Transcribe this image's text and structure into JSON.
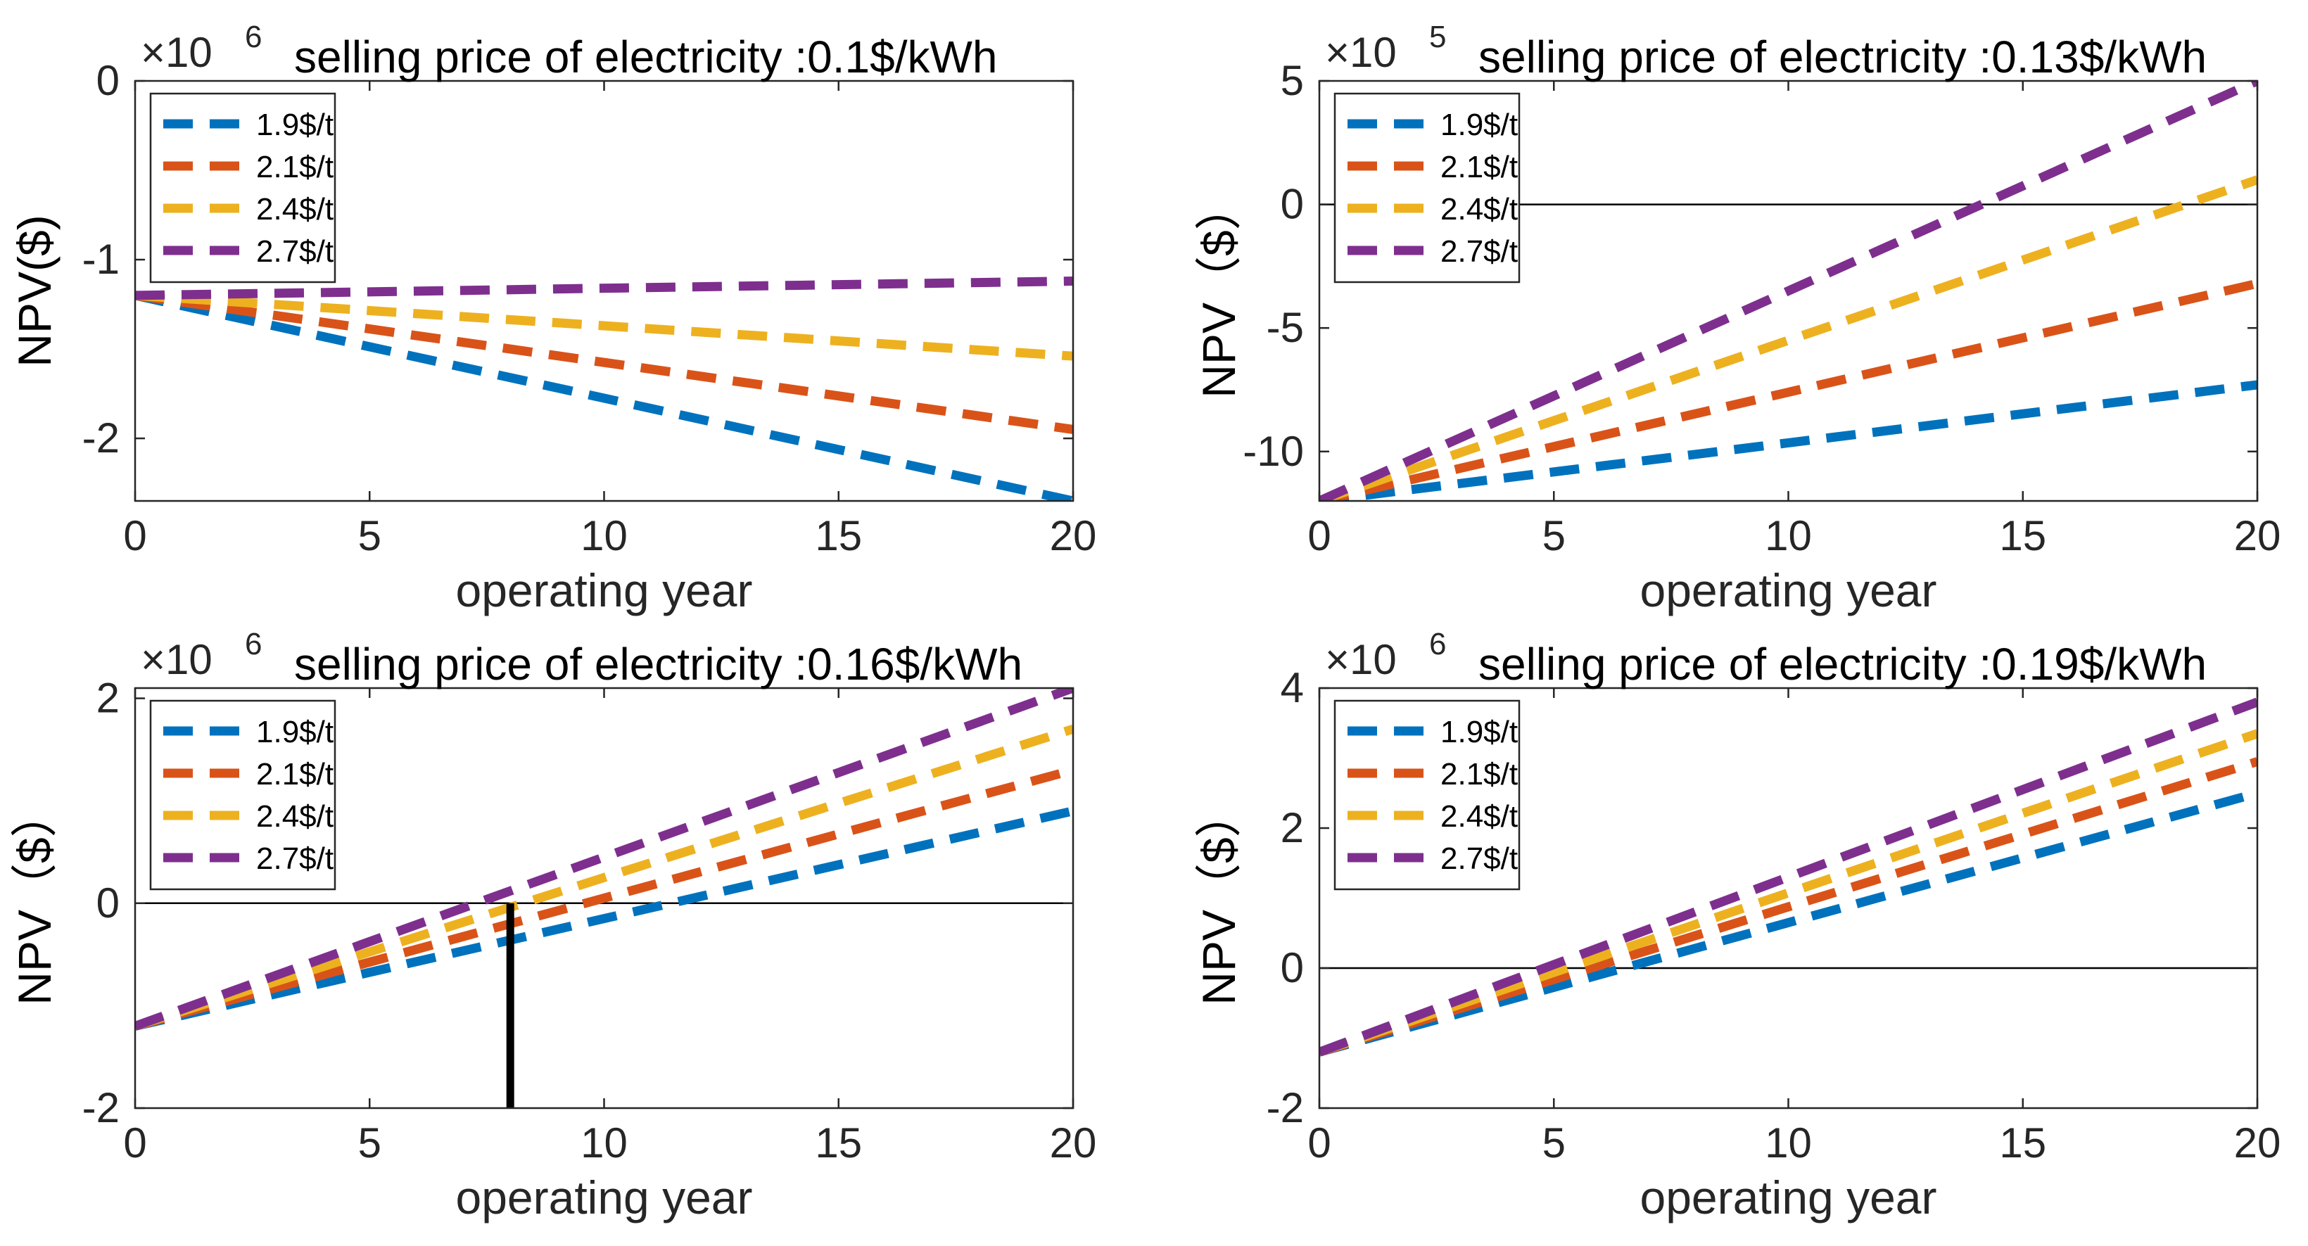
{
  "chart_data": [
    {
      "type": "line",
      "title": "selling price of electricity :0.1$/kWh",
      "multiplier": "×10",
      "exponent": "6",
      "xlabel": "operating year",
      "ylabel": "NPV($)",
      "xlim": [
        0,
        20
      ],
      "ylim": [
        -2.35,
        0
      ],
      "xticks": [
        0,
        5,
        10,
        15,
        20
      ],
      "xtick_labels": [
        "0",
        "5",
        "10",
        "15",
        "20"
      ],
      "yticks": [
        0,
        -1,
        -2
      ],
      "ytick_labels": [
        "0",
        "-1",
        "-2"
      ],
      "zero_line": false,
      "marker_x": null,
      "legend": {
        "location": "top-left",
        "entries": [
          "1.9$/t",
          "2.1$/t",
          "2.4$/t",
          "2.7$/t"
        ]
      },
      "x": [
        0,
        20
      ],
      "series": [
        {
          "name": "1.9$/t",
          "color": "#0072BD",
          "values": [
            -1.2,
            -2.35
          ]
        },
        {
          "name": "2.1$/t",
          "color": "#D95319",
          "values": [
            -1.2,
            -1.95
          ]
        },
        {
          "name": "2.4$/t",
          "color": "#EDB120",
          "values": [
            -1.2,
            -1.54
          ]
        },
        {
          "name": "2.7$/t",
          "color": "#7E2F8E",
          "values": [
            -1.2,
            -1.12
          ]
        }
      ]
    },
    {
      "type": "line",
      "title": "selling price of electricity :0.13$/kWh",
      "multiplier": "×10",
      "exponent": "5",
      "xlabel": "operating year",
      "ylabel": "NPV（$）",
      "xlim": [
        0,
        20
      ],
      "ylim": [
        -12,
        5
      ],
      "xticks": [
        0,
        5,
        10,
        15,
        20
      ],
      "xtick_labels": [
        "0",
        "5",
        "10",
        "15",
        "20"
      ],
      "yticks": [
        5,
        0,
        -5,
        -10
      ],
      "ytick_labels": [
        "5",
        "0",
        "-5",
        "-10"
      ],
      "zero_line": true,
      "marker_x": null,
      "legend": {
        "location": "top-left",
        "entries": [
          "1.9$/t",
          "2.1$/t",
          "2.4$/t",
          "2.7$/t"
        ]
      },
      "x": [
        0,
        20
      ],
      "series": [
        {
          "name": "1.9$/t",
          "color": "#0072BD",
          "values": [
            -12,
            -7.3
          ]
        },
        {
          "name": "2.1$/t",
          "color": "#D95319",
          "values": [
            -12,
            -3.2
          ]
        },
        {
          "name": "2.4$/t",
          "color": "#EDB120",
          "values": [
            -12,
            1.0
          ]
        },
        {
          "name": "2.7$/t",
          "color": "#7E2F8E",
          "values": [
            -12,
            5.0
          ]
        }
      ]
    },
    {
      "type": "line",
      "title": "selling price of electricity :0.16$/kWh",
      "multiplier": "×10",
      "exponent": "6",
      "xlabel": "operating year",
      "ylabel": "NPV（$）",
      "xlim": [
        0,
        20
      ],
      "ylim": [
        -2,
        2.1
      ],
      "xticks": [
        0,
        5,
        10,
        15,
        20
      ],
      "xtick_labels": [
        "0",
        "5",
        "10",
        "15",
        "20"
      ],
      "yticks": [
        2,
        0,
        -2
      ],
      "ytick_labels": [
        "2",
        "0",
        "-2"
      ],
      "zero_line": true,
      "marker_x": 8,
      "legend": {
        "location": "top-left",
        "entries": [
          "1.9$/t",
          "2.1$/t",
          "2.4$/t",
          "2.7$/t"
        ]
      },
      "x": [
        0,
        20
      ],
      "series": [
        {
          "name": "1.9$/t",
          "color": "#0072BD",
          "values": [
            -1.2,
            0.9
          ]
        },
        {
          "name": "2.1$/t",
          "color": "#D95319",
          "values": [
            -1.2,
            1.3
          ]
        },
        {
          "name": "2.4$/t",
          "color": "#EDB120",
          "values": [
            -1.2,
            1.7
          ]
        },
        {
          "name": "2.7$/t",
          "color": "#7E2F8E",
          "values": [
            -1.2,
            2.1
          ]
        }
      ]
    },
    {
      "type": "line",
      "title": "selling price of electricity :0.19$/kWh",
      "multiplier": "×10",
      "exponent": "6",
      "xlabel": "operating year",
      "ylabel": "NPV（$）",
      "xlim": [
        0,
        20
      ],
      "ylim": [
        -2,
        4
      ],
      "xticks": [
        0,
        5,
        10,
        15,
        20
      ],
      "xtick_labels": [
        "0",
        "5",
        "10",
        "15",
        "20"
      ],
      "yticks": [
        4,
        2,
        0,
        -2
      ],
      "ytick_labels": [
        "4",
        "2",
        "0",
        "-2"
      ],
      "zero_line": true,
      "marker_x": null,
      "legend": {
        "location": "top-left",
        "entries": [
          "1.9$/t",
          "2.1$/t",
          "2.4$/t",
          "2.7$/t"
        ]
      },
      "x": [
        0,
        20
      ],
      "series": [
        {
          "name": "1.9$/t",
          "color": "#0072BD",
          "values": [
            -1.2,
            2.5
          ]
        },
        {
          "name": "2.1$/t",
          "color": "#D95319",
          "values": [
            -1.2,
            2.95
          ]
        },
        {
          "name": "2.4$/t",
          "color": "#EDB120",
          "values": [
            -1.2,
            3.35
          ]
        },
        {
          "name": "2.7$/t",
          "color": "#7E2F8E",
          "values": [
            -1.2,
            3.8
          ]
        }
      ]
    }
  ]
}
